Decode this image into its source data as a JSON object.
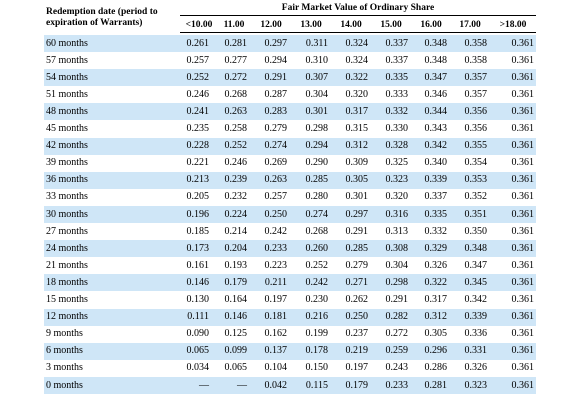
{
  "header": {
    "row_label": [
      "Redemption date (period to",
      "expiration of Warrants)"
    ],
    "title": "Fair Market Value of Ordinary Share",
    "columns": [
      "<10.00",
      "11.00",
      "12.00",
      "13.00",
      "14.00",
      "15.00",
      "16.00",
      "17.00",
      ">18.00"
    ]
  },
  "table": {
    "rows": [
      [
        "60 months",
        "0.261",
        "0.281",
        "0.297",
        "0.311",
        "0.324",
        "0.337",
        "0.348",
        "0.358",
        "0.361"
      ],
      [
        "57 months",
        "0.257",
        "0.277",
        "0.294",
        "0.310",
        "0.324",
        "0.337",
        "0.348",
        "0.358",
        "0.361"
      ],
      [
        "54 months",
        "0.252",
        "0.272",
        "0.291",
        "0.307",
        "0.322",
        "0.335",
        "0.347",
        "0.357",
        "0.361"
      ],
      [
        "51 months",
        "0.246",
        "0.268",
        "0.287",
        "0.304",
        "0.320",
        "0.333",
        "0.346",
        "0.357",
        "0.361"
      ],
      [
        "48 months",
        "0.241",
        "0.263",
        "0.283",
        "0.301",
        "0.317",
        "0.332",
        "0.344",
        "0.356",
        "0.361"
      ],
      [
        "45 months",
        "0.235",
        "0.258",
        "0.279",
        "0.298",
        "0.315",
        "0.330",
        "0.343",
        "0.356",
        "0.361"
      ],
      [
        "42 months",
        "0.228",
        "0.252",
        "0.274",
        "0.294",
        "0.312",
        "0.328",
        "0.342",
        "0.355",
        "0.361"
      ],
      [
        "39 months",
        "0.221",
        "0.246",
        "0.269",
        "0.290",
        "0.309",
        "0.325",
        "0.340",
        "0.354",
        "0.361"
      ],
      [
        "36 months",
        "0.213",
        "0.239",
        "0.263",
        "0.285",
        "0.305",
        "0.323",
        "0.339",
        "0.353",
        "0.361"
      ],
      [
        "33 months",
        "0.205",
        "0.232",
        "0.257",
        "0.280",
        "0.301",
        "0.320",
        "0.337",
        "0.352",
        "0.361"
      ],
      [
        "30 months",
        "0.196",
        "0.224",
        "0.250",
        "0.274",
        "0.297",
        "0.316",
        "0.335",
        "0.351",
        "0.361"
      ],
      [
        "27 months",
        "0.185",
        "0.214",
        "0.242",
        "0.268",
        "0.291",
        "0.313",
        "0.332",
        "0.350",
        "0.361"
      ],
      [
        "24 months",
        "0.173",
        "0.204",
        "0.233",
        "0.260",
        "0.285",
        "0.308",
        "0.329",
        "0.348",
        "0.361"
      ],
      [
        "21 months",
        "0.161",
        "0.193",
        "0.223",
        "0.252",
        "0.279",
        "0.304",
        "0.326",
        "0.347",
        "0.361"
      ],
      [
        "18 months",
        "0.146",
        "0.179",
        "0.211",
        "0.242",
        "0.271",
        "0.298",
        "0.322",
        "0.345",
        "0.361"
      ],
      [
        "15 months",
        "0.130",
        "0.164",
        "0.197",
        "0.230",
        "0.262",
        "0.291",
        "0.317",
        "0.342",
        "0.361"
      ],
      [
        "12 months",
        "0.111",
        "0.146",
        "0.181",
        "0.216",
        "0.250",
        "0.282",
        "0.312",
        "0.339",
        "0.361"
      ],
      [
        "9 months",
        "0.090",
        "0.125",
        "0.162",
        "0.199",
        "0.237",
        "0.272",
        "0.305",
        "0.336",
        "0.361"
      ],
      [
        "6 months",
        "0.065",
        "0.099",
        "0.137",
        "0.178",
        "0.219",
        "0.259",
        "0.296",
        "0.331",
        "0.361"
      ],
      [
        "3 months",
        "0.034",
        "0.065",
        "0.104",
        "0.150",
        "0.197",
        "0.243",
        "0.286",
        "0.326",
        "0.361"
      ],
      [
        "0 months",
        "—",
        "—",
        "0.042",
        "0.115",
        "0.179",
        "0.233",
        "0.281",
        "0.323",
        "0.361"
      ]
    ]
  }
}
